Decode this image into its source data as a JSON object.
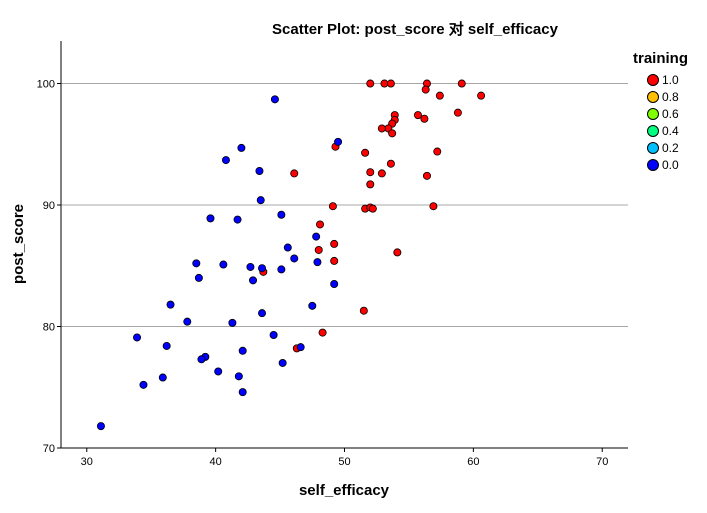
{
  "chart_data": {
    "type": "scatter",
    "title": "Scatter Plot: post_score 对 self_efficacy",
    "xlabel": "self_efficacy",
    "ylabel": "post_score",
    "xlim": [
      28,
      72
    ],
    "ylim": [
      70,
      103.5
    ],
    "xticks": [
      "30",
      "40",
      "50",
      "60",
      "70"
    ],
    "yticks": [
      "70",
      "80",
      "90",
      "100"
    ],
    "grid": "horizontal",
    "legend": {
      "title": "training",
      "placement": "right",
      "entries": [
        {
          "label": "1.0",
          "color": "#ff0000"
        },
        {
          "label": "0.8",
          "color": "#ffbf00"
        },
        {
          "label": "0.6",
          "color": "#80ff00"
        },
        {
          "label": "0.4",
          "color": "#00ff80"
        },
        {
          "label": "0.2",
          "color": "#00bfff"
        },
        {
          "label": "0.0",
          "color": "#0000ff"
        }
      ]
    },
    "series": [
      {
        "name": "1.0",
        "color": "#ff0000",
        "points": [
          [
            52.0,
            100.0
          ],
          [
            53.1,
            100.0
          ],
          [
            53.6,
            100.0
          ],
          [
            56.4,
            100.0
          ],
          [
            59.1,
            100.0
          ],
          [
            56.3,
            99.5
          ],
          [
            57.4,
            99.0
          ],
          [
            60.6,
            99.0
          ],
          [
            58.8,
            97.6
          ],
          [
            55.7,
            97.4
          ],
          [
            56.2,
            97.1
          ],
          [
            53.9,
            97.4
          ],
          [
            53.9,
            97.0
          ],
          [
            53.7,
            96.7
          ],
          [
            53.4,
            96.3
          ],
          [
            52.9,
            96.3
          ],
          [
            53.7,
            95.9
          ],
          [
            49.3,
            94.8
          ],
          [
            51.6,
            94.3
          ],
          [
            57.2,
            94.4
          ],
          [
            53.6,
            93.4
          ],
          [
            52.0,
            92.7
          ],
          [
            52.9,
            92.6
          ],
          [
            56.4,
            92.4
          ],
          [
            46.1,
            92.6
          ],
          [
            52.0,
            91.7
          ],
          [
            49.1,
            89.9
          ],
          [
            51.6,
            89.7
          ],
          [
            52.0,
            89.8
          ],
          [
            52.2,
            89.7
          ],
          [
            56.9,
            89.9
          ],
          [
            48.1,
            88.4
          ],
          [
            49.2,
            86.8
          ],
          [
            48.0,
            86.3
          ],
          [
            54.1,
            86.1
          ],
          [
            49.2,
            85.4
          ],
          [
            43.7,
            84.5
          ],
          [
            51.5,
            81.3
          ],
          [
            48.3,
            79.5
          ],
          [
            46.3,
            78.2
          ]
        ]
      },
      {
        "name": "0.0",
        "color": "#0000ff",
        "points": [
          [
            44.6,
            98.7
          ],
          [
            49.5,
            95.2
          ],
          [
            42.0,
            94.7
          ],
          [
            40.8,
            93.7
          ],
          [
            43.4,
            92.8
          ],
          [
            43.5,
            90.4
          ],
          [
            45.1,
            89.2
          ],
          [
            39.6,
            88.9
          ],
          [
            41.7,
            88.8
          ],
          [
            47.8,
            87.4
          ],
          [
            45.6,
            86.5
          ],
          [
            46.1,
            85.6
          ],
          [
            47.9,
            85.3
          ],
          [
            38.5,
            85.2
          ],
          [
            40.6,
            85.1
          ],
          [
            42.7,
            84.9
          ],
          [
            43.6,
            84.8
          ],
          [
            45.1,
            84.7
          ],
          [
            38.7,
            84.0
          ],
          [
            42.9,
            83.8
          ],
          [
            49.2,
            83.5
          ],
          [
            36.5,
            81.8
          ],
          [
            47.5,
            81.7
          ],
          [
            43.6,
            81.1
          ],
          [
            37.8,
            80.4
          ],
          [
            41.3,
            80.3
          ],
          [
            33.9,
            79.1
          ],
          [
            44.5,
            79.3
          ],
          [
            36.2,
            78.4
          ],
          [
            46.6,
            78.3
          ],
          [
            42.1,
            78.0
          ],
          [
            39.2,
            77.5
          ],
          [
            38.9,
            77.3
          ],
          [
            45.2,
            77.0
          ],
          [
            40.2,
            76.3
          ],
          [
            41.8,
            75.9
          ],
          [
            35.9,
            75.8
          ],
          [
            34.4,
            75.2
          ],
          [
            42.1,
            74.6
          ],
          [
            31.1,
            71.8
          ]
        ]
      }
    ]
  }
}
